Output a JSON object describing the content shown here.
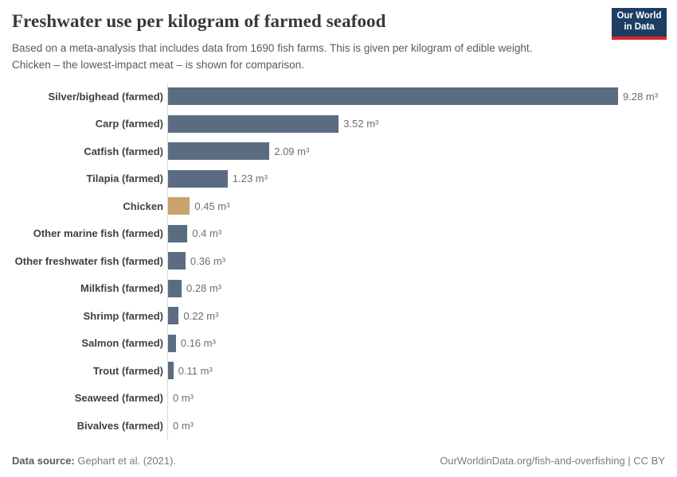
{
  "header": {
    "title": "Freshwater use per kilogram of farmed seafood",
    "subtitle_line1": "Based on a meta-analysis that includes data from 1690 fish farms. This is given per kilogram of edible weight.",
    "subtitle_line2": "Chicken – the lowest-impact meat – is shown for comparison.",
    "logo_line1": "Our World",
    "logo_line2": "in Data",
    "logo_bg_color": "#1d3d63",
    "logo_accent_color": "#e0232b"
  },
  "chart_data": {
    "type": "bar",
    "orientation": "horizontal",
    "title": "Freshwater use per kilogram of farmed seafood",
    "xlabel": "",
    "ylabel": "",
    "xlim": [
      0,
      9.28
    ],
    "grid": false,
    "legend": false,
    "unit": "m³",
    "categories": [
      "Silver/bighead (farmed)",
      "Carp (farmed)",
      "Catfish (farmed)",
      "Tilapia (farmed)",
      "Chicken",
      "Other marine fish (farmed)",
      "Other freshwater fish (farmed)",
      "Milkfish (farmed)",
      "Shrimp (farmed)",
      "Salmon (farmed)",
      "Trout (farmed)",
      "Seaweed (farmed)",
      "Bivalves (farmed)"
    ],
    "values": [
      9.28,
      3.52,
      2.09,
      1.23,
      0.45,
      0.4,
      0.36,
      0.28,
      0.22,
      0.16,
      0.11,
      0,
      0
    ],
    "value_labels": [
      "9.28 m³",
      "3.52 m³",
      "2.09 m³",
      "1.23 m³",
      "0.45 m³",
      "0.4 m³",
      "0.36 m³",
      "0.28 m³",
      "0.22 m³",
      "0.16 m³",
      "0.11 m³",
      "0 m³",
      "0 m³"
    ],
    "bar_color": "#5b6c82",
    "highlight_category": "Chicken",
    "highlight_color": "#c9a36d"
  },
  "footer": {
    "datasource_label": "Data source:",
    "datasource_value": "Gephart et al. (2021).",
    "link": "OurWorldinData.org/fish-and-overfishing | CC BY"
  }
}
